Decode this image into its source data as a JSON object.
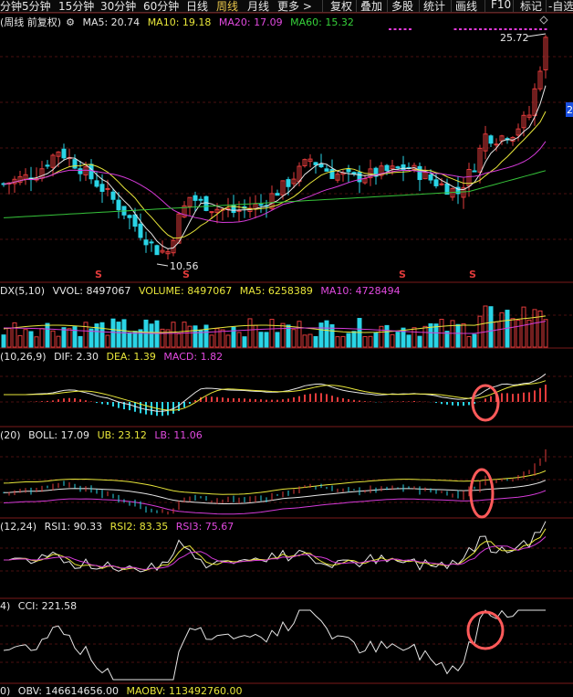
{
  "toolbar": {
    "left_items": [
      "分钟",
      "5分钟",
      "15分钟",
      "30分钟",
      "60分钟",
      "日线",
      "周线",
      "月线",
      "更多 >"
    ],
    "active_index": 6,
    "right_items": [
      "复权",
      "叠加",
      "多股",
      "统计",
      "画线",
      "F10",
      "标记",
      "-自选"
    ]
  },
  "main": {
    "title": "(周线 前复权)",
    "ma5": "MA5: 20.74",
    "ma10": "MA10: 19.18",
    "ma20": "MA20: 17.09",
    "ma60": "MA60: 15.32",
    "high_label": "25.72",
    "low_label": "10.56",
    "right_marker": "2",
    "s_marker": "S"
  },
  "volume": {
    "title": "DX(5,10)",
    "vvol": "VVOL: 8497067",
    "volume": "VOLUME: 8497067",
    "ma5": "MA5: 6258389",
    "ma10": "MA10: 4728494"
  },
  "macd": {
    "title": "(10,26,9)",
    "dif": "DIF: 2.30",
    "dea": "DEA: 1.39",
    "macd": "MACD: 1.82"
  },
  "boll": {
    "title": "(20)",
    "boll": "BOLL: 17.09",
    "ub": "UB: 23.12",
    "lb": "LB: 11.06"
  },
  "rsi": {
    "title": "(12,24)",
    "rsi1": "RSI1: 90.33",
    "rsi2": "RSI2: 83.35",
    "rsi3": "RSI3: 75.67"
  },
  "cci": {
    "title": "4)",
    "cci": "CCI: 221.58"
  },
  "obv": {
    "title": "0)",
    "obv": "OBV: 146614656.00",
    "maobv": "MAOBV: 113492760.00"
  },
  "colors": {
    "up": "#e23b3b",
    "down": "#2ad4e6",
    "ma5": "#e6e6e6",
    "ma10": "#e8e63a",
    "ma20": "#d43ad8",
    "ma60": "#36c43a",
    "circle": "#ff5a5a"
  }
}
